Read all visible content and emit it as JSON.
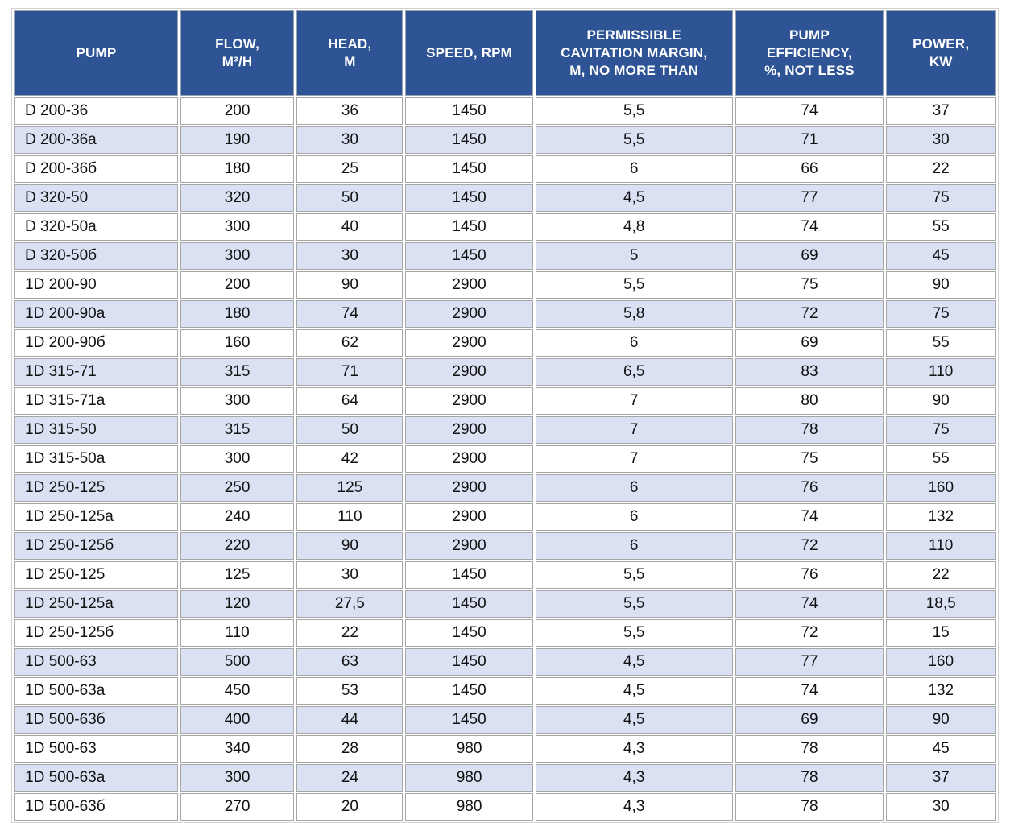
{
  "table": {
    "columns": [
      {
        "id": "pump",
        "lines": [
          "PUMP"
        ]
      },
      {
        "id": "flow",
        "lines": [
          "FLOW,",
          "M³/H"
        ]
      },
      {
        "id": "head",
        "lines": [
          "HEAD,",
          "M"
        ]
      },
      {
        "id": "speed",
        "lines": [
          "SPEED, RPM"
        ]
      },
      {
        "id": "cavitation",
        "lines": [
          "PERMISSIBLE",
          "CAVITATION MARGIN,",
          "M, NO MORE THAN"
        ]
      },
      {
        "id": "efficiency",
        "lines": [
          "PUMP",
          "EFFICIENCY,",
          "%, NOT LESS"
        ]
      },
      {
        "id": "power",
        "lines": [
          "POWER,",
          "KW"
        ]
      }
    ],
    "rows": [
      [
        "D 200-36",
        "200",
        "36",
        "1450",
        "5,5",
        "74",
        "37"
      ],
      [
        "D 200-36a",
        "190",
        "30",
        "1450",
        "5,5",
        "71",
        "30"
      ],
      [
        "D 200-36б",
        "180",
        "25",
        "1450",
        "6",
        "66",
        "22"
      ],
      [
        "D 320-50",
        "320",
        "50",
        "1450",
        "4,5",
        "77",
        "75"
      ],
      [
        "D 320-50a",
        "300",
        "40",
        "1450",
        "4,8",
        "74",
        "55"
      ],
      [
        "D 320-50б",
        "300",
        "30",
        "1450",
        "5",
        "69",
        "45"
      ],
      [
        "1D 200-90",
        "200",
        "90",
        "2900",
        "5,5",
        "75",
        "90"
      ],
      [
        "1D 200-90a",
        "180",
        "74",
        "2900",
        "5,8",
        "72",
        "75"
      ],
      [
        "1D 200-90б",
        "160",
        "62",
        "2900",
        "6",
        "69",
        "55"
      ],
      [
        "1D 315-71",
        "315",
        "71",
        "2900",
        "6,5",
        "83",
        "110"
      ],
      [
        "1D 315-71a",
        "300",
        "64",
        "2900",
        "7",
        "80",
        "90"
      ],
      [
        "1D 315-50",
        "315",
        "50",
        "2900",
        "7",
        "78",
        "75"
      ],
      [
        "1D 315-50a",
        "300",
        "42",
        "2900",
        "7",
        "75",
        "55"
      ],
      [
        "1D 250-125",
        "250",
        "125",
        "2900",
        "6",
        "76",
        "160"
      ],
      [
        "1D 250-125a",
        "240",
        "110",
        "2900",
        "6",
        "74",
        "132"
      ],
      [
        "1D 250-125б",
        "220",
        "90",
        "2900",
        "6",
        "72",
        "110"
      ],
      [
        "1D 250-125",
        "125",
        "30",
        "1450",
        "5,5",
        "76",
        "22"
      ],
      [
        "1D 250-125a",
        "120",
        "27,5",
        "1450",
        "5,5",
        "74",
        "18,5"
      ],
      [
        "1D 250-125б",
        "110",
        "22",
        "1450",
        "5,5",
        "72",
        "15"
      ],
      [
        "1D 500-63",
        "500",
        "63",
        "1450",
        "4,5",
        "77",
        "160"
      ],
      [
        "1D 500-63a",
        "450",
        "53",
        "1450",
        "4,5",
        "74",
        "132"
      ],
      [
        "1D 500-63б",
        "400",
        "44",
        "1450",
        "4,5",
        "69",
        "90"
      ],
      [
        "1D 500-63",
        "340",
        "28",
        "980",
        "4,3",
        "78",
        "45"
      ],
      [
        "1D 500-63a",
        "300",
        "24",
        "980",
        "4,3",
        "78",
        "37"
      ],
      [
        "1D 500-63б",
        "270",
        "20",
        "980",
        "4,3",
        "78",
        "30"
      ]
    ]
  },
  "colors": {
    "header_bg": "#2F5496",
    "header_text": "#FFFFFF",
    "stripe_bg": "#D9E1F2",
    "row_bg": "#FFFFFF",
    "cell_border": "#A6A6A6",
    "text": "#111111"
  }
}
